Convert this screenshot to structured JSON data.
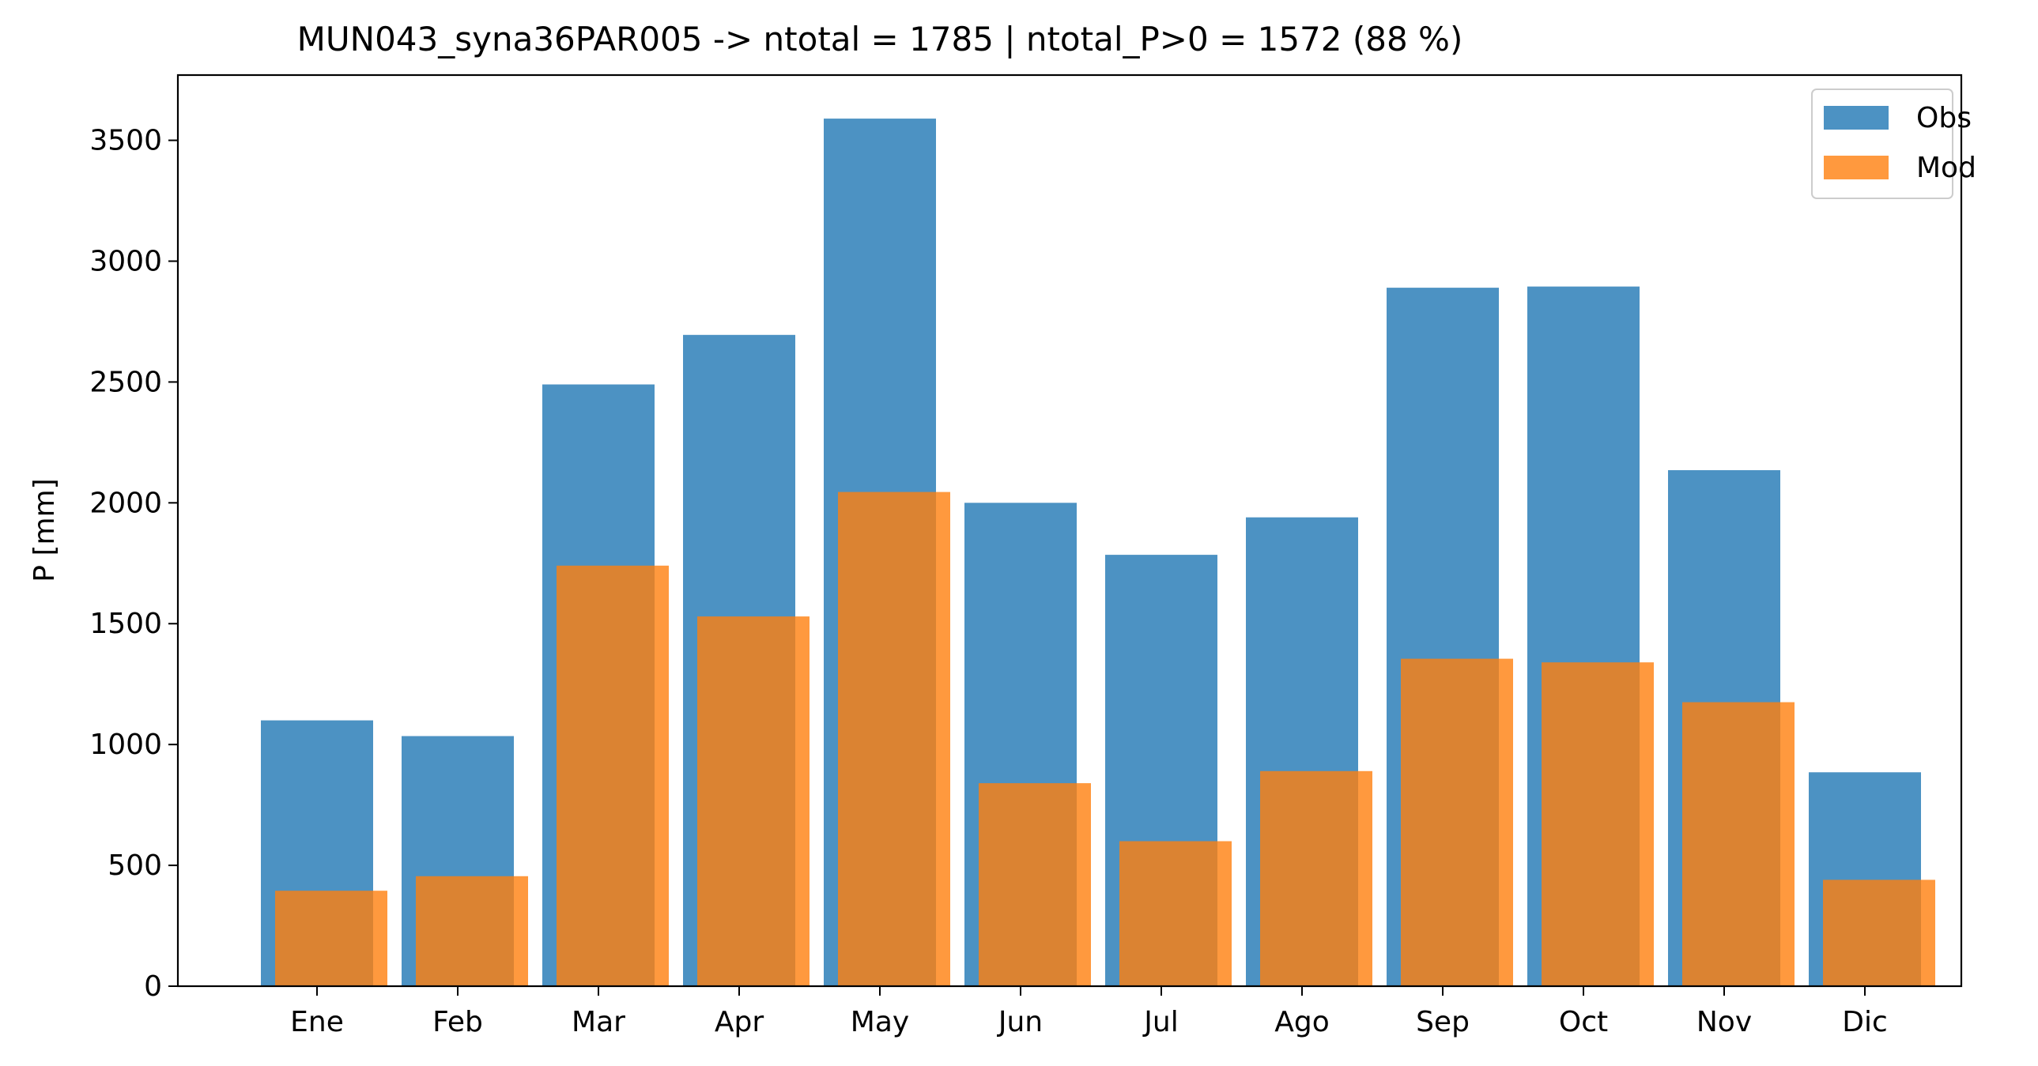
{
  "chart_data": {
    "type": "bar",
    "title": "MUN043_syna36PAR005 -> ntotal = 1785 | ntotal_P>0 = 1572 (88 %)",
    "xlabel": "",
    "ylabel": "P [mm]",
    "categories": [
      "Ene",
      "Feb",
      "Mar",
      "Apr",
      "May",
      "Jun",
      "Jul",
      "Ago",
      "Sep",
      "Oct",
      "Nov",
      "Dic"
    ],
    "series": [
      {
        "name": "Obs",
        "color": "#1f77b4",
        "values": [
          1100,
          1035,
          2490,
          2695,
          3590,
          2000,
          1785,
          1940,
          2890,
          2895,
          2135,
          885
        ]
      },
      {
        "name": "Mod",
        "color": "#ff7f0e",
        "values": [
          395,
          455,
          1740,
          1530,
          2045,
          840,
          600,
          890,
          1355,
          1340,
          1175,
          440
        ]
      }
    ],
    "ylim": [
      0,
      3770
    ],
    "yticks": [
      0,
      500,
      1000,
      1500,
      2000,
      2500,
      3000,
      3500
    ],
    "grid": false,
    "legend_position": "top-right"
  }
}
